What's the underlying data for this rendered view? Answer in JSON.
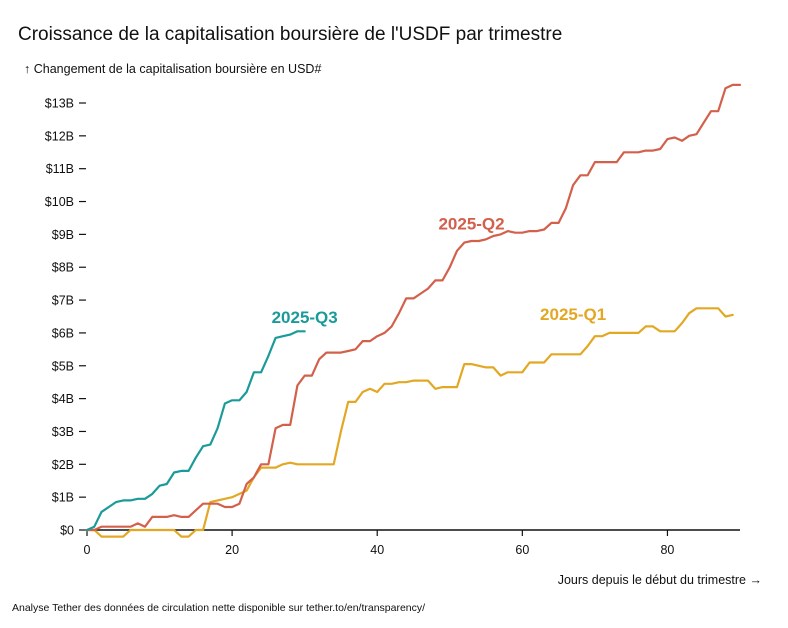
{
  "chart_data": {
    "type": "line",
    "title": "Croissance de la capitalisation boursière de l'USDF par trimestre",
    "ylabel_arrow": "↑",
    "ylabel": "Changement de la capitalisation boursière en USD#",
    "xlabel": "Jours depuis le début du trimestre",
    "xlabel_arrow": "→",
    "source": "Analyse Tether des données de circulation nette disponible sur tether.to/en/transparency/",
    "xlim": [
      0,
      90
    ],
    "ylim": [
      0,
      13.5
    ],
    "x_ticks": [
      0,
      20,
      40,
      60,
      80
    ],
    "y_ticks": [
      {
        "value": 0,
        "label": "$0"
      },
      {
        "value": 1,
        "label": "$1B"
      },
      {
        "value": 2,
        "label": "$2B"
      },
      {
        "value": 3,
        "label": "$3B"
      },
      {
        "value": 4,
        "label": "$4B"
      },
      {
        "value": 5,
        "label": "$5B"
      },
      {
        "value": 6,
        "label": "$6B"
      },
      {
        "value": 7,
        "label": "$7B"
      },
      {
        "value": 8,
        "label": "$8B"
      },
      {
        "value": 9,
        "label": "$9B"
      },
      {
        "value": 10,
        "label": "$10B"
      },
      {
        "value": 11,
        "label": "$11B"
      },
      {
        "value": 12,
        "label": "$12B"
      },
      {
        "value": 13,
        "label": "$13B"
      }
    ],
    "series": [
      {
        "name": "2025-Q1",
        "color": "#e3a823",
        "label_pos": [
          67,
          6.4
        ],
        "points": [
          [
            0,
            0
          ],
          [
            1,
            0
          ],
          [
            2,
            -0.2
          ],
          [
            3,
            -0.2
          ],
          [
            4,
            -0.2
          ],
          [
            5,
            -0.2
          ],
          [
            6,
            0
          ],
          [
            7,
            0
          ],
          [
            8,
            0
          ],
          [
            9,
            0
          ],
          [
            10,
            0
          ],
          [
            11,
            0
          ],
          [
            12,
            0
          ],
          [
            13,
            -0.2
          ],
          [
            14,
            -0.2
          ],
          [
            15,
            0
          ],
          [
            16,
            0
          ],
          [
            17,
            0.85
          ],
          [
            18,
            0.9
          ],
          [
            19,
            0.95
          ],
          [
            20,
            1.0
          ],
          [
            21,
            1.1
          ],
          [
            22,
            1.2
          ],
          [
            23,
            1.6
          ],
          [
            24,
            1.9
          ],
          [
            25,
            1.9
          ],
          [
            26,
            1.9
          ],
          [
            27,
            2.0
          ],
          [
            28,
            2.05
          ],
          [
            29,
            2.0
          ],
          [
            30,
            2.0
          ],
          [
            31,
            2.0
          ],
          [
            32,
            2.0
          ],
          [
            33,
            2.0
          ],
          [
            34,
            2.0
          ],
          [
            35,
            3.0
          ],
          [
            36,
            3.9
          ],
          [
            37,
            3.9
          ],
          [
            38,
            4.2
          ],
          [
            39,
            4.3
          ],
          [
            40,
            4.2
          ],
          [
            41,
            4.45
          ],
          [
            42,
            4.45
          ],
          [
            43,
            4.5
          ],
          [
            44,
            4.5
          ],
          [
            45,
            4.55
          ],
          [
            46,
            4.55
          ],
          [
            47,
            4.55
          ],
          [
            48,
            4.3
          ],
          [
            49,
            4.35
          ],
          [
            50,
            4.35
          ],
          [
            51,
            4.35
          ],
          [
            52,
            5.05
          ],
          [
            53,
            5.05
          ],
          [
            54,
            5.0
          ],
          [
            55,
            4.95
          ],
          [
            56,
            4.95
          ],
          [
            57,
            4.7
          ],
          [
            58,
            4.8
          ],
          [
            59,
            4.8
          ],
          [
            60,
            4.8
          ],
          [
            61,
            5.1
          ],
          [
            62,
            5.1
          ],
          [
            63,
            5.1
          ],
          [
            64,
            5.35
          ],
          [
            65,
            5.35
          ],
          [
            66,
            5.35
          ],
          [
            67,
            5.35
          ],
          [
            68,
            5.35
          ],
          [
            69,
            5.6
          ],
          [
            70,
            5.9
          ],
          [
            71,
            5.9
          ],
          [
            72,
            6.0
          ],
          [
            73,
            6.0
          ],
          [
            74,
            6.0
          ],
          [
            75,
            6.0
          ],
          [
            76,
            6.0
          ],
          [
            77,
            6.2
          ],
          [
            78,
            6.2
          ],
          [
            79,
            6.05
          ],
          [
            80,
            6.05
          ],
          [
            81,
            6.05
          ],
          [
            82,
            6.3
          ],
          [
            83,
            6.6
          ],
          [
            84,
            6.75
          ],
          [
            85,
            6.75
          ],
          [
            86,
            6.75
          ],
          [
            87,
            6.75
          ],
          [
            88,
            6.5
          ],
          [
            89,
            6.55
          ]
        ]
      },
      {
        "name": "2025-Q2",
        "color": "#d2604b",
        "label_pos": [
          53,
          9.15
        ],
        "points": [
          [
            0,
            0
          ],
          [
            1,
            0
          ],
          [
            2,
            0.1
          ],
          [
            3,
            0.1
          ],
          [
            4,
            0.1
          ],
          [
            5,
            0.1
          ],
          [
            6,
            0.1
          ],
          [
            7,
            0.2
          ],
          [
            8,
            0.1
          ],
          [
            9,
            0.4
          ],
          [
            10,
            0.4
          ],
          [
            11,
            0.4
          ],
          [
            12,
            0.45
          ],
          [
            13,
            0.4
          ],
          [
            14,
            0.4
          ],
          [
            15,
            0.6
          ],
          [
            16,
            0.8
          ],
          [
            17,
            0.8
          ],
          [
            18,
            0.8
          ],
          [
            19,
            0.7
          ],
          [
            20,
            0.7
          ],
          [
            21,
            0.8
          ],
          [
            22,
            1.4
          ],
          [
            23,
            1.6
          ],
          [
            24,
            2.0
          ],
          [
            25,
            2.0
          ],
          [
            26,
            3.1
          ],
          [
            27,
            3.2
          ],
          [
            28,
            3.2
          ],
          [
            29,
            4.4
          ],
          [
            30,
            4.7
          ],
          [
            31,
            4.7
          ],
          [
            32,
            5.2
          ],
          [
            33,
            5.4
          ],
          [
            34,
            5.4
          ],
          [
            35,
            5.4
          ],
          [
            36,
            5.45
          ],
          [
            37,
            5.5
          ],
          [
            38,
            5.75
          ],
          [
            39,
            5.75
          ],
          [
            40,
            5.9
          ],
          [
            41,
            6.0
          ],
          [
            42,
            6.2
          ],
          [
            43,
            6.6
          ],
          [
            44,
            7.05
          ],
          [
            45,
            7.05
          ],
          [
            46,
            7.2
          ],
          [
            47,
            7.35
          ],
          [
            48,
            7.6
          ],
          [
            49,
            7.6
          ],
          [
            50,
            8.0
          ],
          [
            51,
            8.5
          ],
          [
            52,
            8.75
          ],
          [
            53,
            8.8
          ],
          [
            54,
            8.8
          ],
          [
            55,
            8.85
          ],
          [
            56,
            8.95
          ],
          [
            57,
            9.0
          ],
          [
            58,
            9.1
          ],
          [
            59,
            9.05
          ],
          [
            60,
            9.05
          ],
          [
            61,
            9.1
          ],
          [
            62,
            9.1
          ],
          [
            63,
            9.15
          ],
          [
            64,
            9.35
          ],
          [
            65,
            9.35
          ],
          [
            66,
            9.8
          ],
          [
            67,
            10.5
          ],
          [
            68,
            10.8
          ],
          [
            69,
            10.8
          ],
          [
            70,
            11.2
          ],
          [
            71,
            11.2
          ],
          [
            72,
            11.2
          ],
          [
            73,
            11.2
          ],
          [
            74,
            11.5
          ],
          [
            75,
            11.5
          ],
          [
            76,
            11.5
          ],
          [
            77,
            11.55
          ],
          [
            78,
            11.55
          ],
          [
            79,
            11.6
          ],
          [
            80,
            11.9
          ],
          [
            81,
            11.95
          ],
          [
            82,
            11.85
          ],
          [
            83,
            12.0
          ],
          [
            84,
            12.05
          ],
          [
            85,
            12.4
          ],
          [
            86,
            12.75
          ],
          [
            87,
            12.75
          ],
          [
            88,
            13.45
          ],
          [
            89,
            13.55
          ],
          [
            90,
            13.55
          ]
        ]
      },
      {
        "name": "2025-Q3",
        "color": "#1b9a9a",
        "label_pos": [
          30,
          6.3
        ],
        "points": [
          [
            0,
            0
          ],
          [
            1,
            0.1
          ],
          [
            2,
            0.55
          ],
          [
            3,
            0.7
          ],
          [
            4,
            0.85
          ],
          [
            5,
            0.9
          ],
          [
            6,
            0.9
          ],
          [
            7,
            0.95
          ],
          [
            8,
            0.95
          ],
          [
            9,
            1.1
          ],
          [
            10,
            1.35
          ],
          [
            11,
            1.4
          ],
          [
            12,
            1.75
          ],
          [
            13,
            1.8
          ],
          [
            14,
            1.8
          ],
          [
            15,
            2.2
          ],
          [
            16,
            2.55
          ],
          [
            17,
            2.6
          ],
          [
            18,
            3.1
          ],
          [
            19,
            3.85
          ],
          [
            20,
            3.95
          ],
          [
            21,
            3.95
          ],
          [
            22,
            4.2
          ],
          [
            23,
            4.8
          ],
          [
            24,
            4.8
          ],
          [
            25,
            5.3
          ],
          [
            26,
            5.85
          ],
          [
            27,
            5.9
          ],
          [
            28,
            5.95
          ],
          [
            29,
            6.05
          ],
          [
            30,
            6.05
          ]
        ]
      }
    ]
  }
}
